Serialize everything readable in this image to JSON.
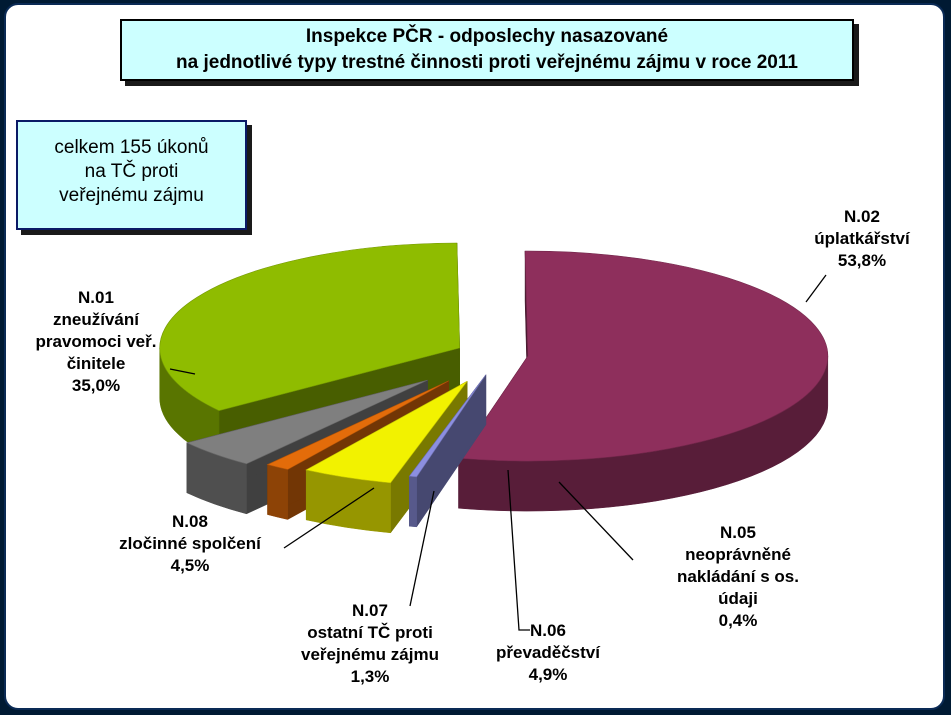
{
  "chart_data": {
    "type": "pie",
    "title_lines": [
      "Inspekce PČR - odposlechy nasazované",
      "na jednotlivé typy trestné činnosti proti veřejnému zájmu v roce 2011"
    ],
    "note_lines": [
      "celkem 155 úkonů",
      "na TČ proti",
      "veřejnému zájmu"
    ],
    "slices": [
      {
        "code": "N.02",
        "name_lines": [
          "úplatkářství"
        ],
        "value_label": "53,8%",
        "value": 53.8,
        "color": "#8e2f5c"
      },
      {
        "code": "N.05",
        "name_lines": [
          "neoprávněné",
          "nakládání s os.",
          "údaji"
        ],
        "value_label": "0,4%",
        "value": 0.4,
        "color": "#8c8fe0"
      },
      {
        "code": "N.06",
        "name_lines": [
          "převaděčství"
        ],
        "value_label": "4,9%",
        "value": 4.9,
        "color": "#f2f200"
      },
      {
        "code": "N.07",
        "name_lines": [
          "ostatní TČ proti",
          "veřejnému zájmu"
        ],
        "value_label": "1,3%",
        "value": 1.3,
        "color": "#e36c0a"
      },
      {
        "code": "N.08",
        "name_lines": [
          "zločinné spolčení"
        ],
        "value_label": "4,5%",
        "value": 4.5,
        "color": "#7f7f7f"
      },
      {
        "code": "N.01",
        "name_lines": [
          "zneužívání",
          "pravomoci veř.",
          "činitele"
        ],
        "value_label": "35,0%",
        "value": 35.0,
        "color": "#8fbc00"
      }
    ]
  }
}
